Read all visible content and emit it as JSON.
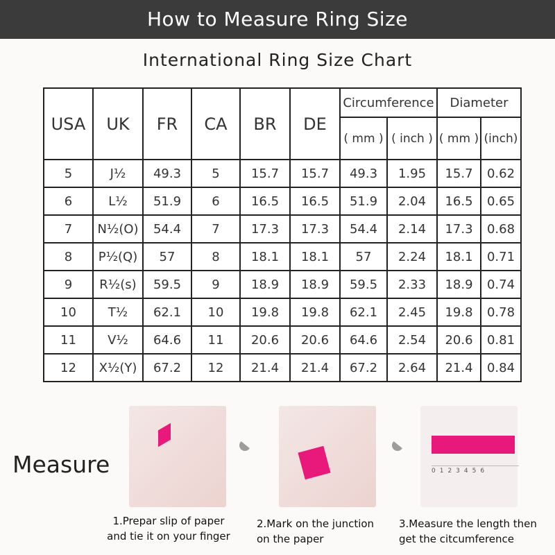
{
  "banner": {
    "title": "How to Measure Ring Size"
  },
  "subtitle": "International Ring Size Chart",
  "table": {
    "headers": [
      "USA",
      "UK",
      "FR",
      "CA",
      "BR",
      "DE"
    ],
    "groups": [
      {
        "label": "Circumference",
        "units": [
          "( mm )",
          "( inch )"
        ]
      },
      {
        "label": "Diameter",
        "units": [
          "( mm )",
          "(inch)"
        ]
      }
    ],
    "rows": [
      [
        "5",
        "J½",
        "49.3",
        "5",
        "15.7",
        "15.7",
        "49.3",
        "1.95",
        "15.7",
        "0.62"
      ],
      [
        "6",
        "L½",
        "51.9",
        "6",
        "16.5",
        "16.5",
        "51.9",
        "2.04",
        "16.5",
        "0.65"
      ],
      [
        "7",
        "N½(O)",
        "54.4",
        "7",
        "17.3",
        "17.3",
        "54.4",
        "2.14",
        "17.3",
        "0.68"
      ],
      [
        "8",
        "P½(Q)",
        "57",
        "8",
        "18.1",
        "18.1",
        "57",
        "2.24",
        "18.1",
        "0.71"
      ],
      [
        "9",
        "R½(s)",
        "59.5",
        "9",
        "18.9",
        "18.9",
        "59.5",
        "2.33",
        "18.9",
        "0.74"
      ],
      [
        "10",
        "T½",
        "62.1",
        "10",
        "19.8",
        "19.8",
        "62.1",
        "2.45",
        "19.8",
        "0.78"
      ],
      [
        "11",
        "V½",
        "64.6",
        "11",
        "20.6",
        "20.6",
        "64.6",
        "2.54",
        "20.6",
        "0.81"
      ],
      [
        "12",
        "X½(Y)",
        "67.2",
        "12",
        "21.4",
        "21.4",
        "67.2",
        "2.64",
        "21.4",
        "0.84"
      ]
    ]
  },
  "measure": {
    "label": "Measure",
    "steps": [
      {
        "line1": "1.Prepar slip of paper",
        "line2": "and tie it on your finger"
      },
      {
        "line1": "2.Mark on the junction",
        "line2": "on the paper"
      },
      {
        "line1": "3.Measure the length then",
        "line2": "get the citcumference"
      }
    ],
    "ruler": "0123456"
  },
  "colors": {
    "banner": "#3b3b3b",
    "strip": "#e8197a"
  }
}
